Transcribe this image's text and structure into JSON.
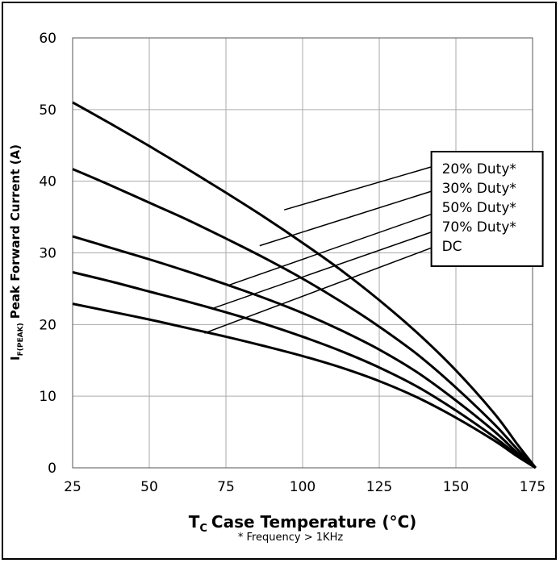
{
  "chart_data": {
    "type": "line",
    "title": "",
    "xlabel": {
      "symbol": "T",
      "subscript": "C",
      "text": "Case Temperature (°C)"
    },
    "ylabel": {
      "symbol": "I",
      "subscript": "F(PEAK)",
      "text": "Peak Forward Current (A)"
    },
    "note": "* Frequency > 1KHz",
    "xlim": [
      25,
      175
    ],
    "ylim": [
      0,
      60
    ],
    "xticks": [
      25,
      50,
      75,
      100,
      125,
      150,
      175
    ],
    "yticks": [
      0,
      10,
      20,
      30,
      40,
      50,
      60
    ],
    "grid": true,
    "legend_position": "right",
    "series": [
      {
        "name": "20% Duty*",
        "x": [
          25,
          37.5,
          50,
          62.5,
          75,
          87.5,
          100,
          112.5,
          125,
          137.5,
          150,
          162.5,
          170,
          176
        ],
        "y": [
          51.0,
          48.0,
          44.9,
          41.7,
          38.4,
          35.0,
          31.4,
          27.6,
          23.4,
          18.8,
          13.6,
          7.6,
          3.3,
          0
        ]
      },
      {
        "name": "30% Duty*",
        "x": [
          25,
          37.5,
          50,
          62.5,
          75,
          87.5,
          100,
          112.5,
          125,
          137.5,
          150,
          162.5,
          170,
          176
        ],
        "y": [
          41.7,
          39.4,
          37.0,
          34.6,
          32.0,
          29.3,
          26.4,
          23.2,
          19.7,
          15.8,
          11.2,
          6.1,
          2.6,
          0
        ]
      },
      {
        "name": "50% Duty*",
        "x": [
          25,
          37.5,
          50,
          62.5,
          75,
          87.5,
          100,
          112.5,
          125,
          137.5,
          150,
          162.5,
          170,
          176
        ],
        "y": [
          32.3,
          30.7,
          29.1,
          27.4,
          25.6,
          23.7,
          21.6,
          19.2,
          16.5,
          13.3,
          9.4,
          5.1,
          2.1,
          0
        ]
      },
      {
        "name": "70% Duty*",
        "x": [
          25,
          37.5,
          50,
          62.5,
          75,
          87.5,
          100,
          112.5,
          125,
          137.5,
          150,
          162.5,
          170,
          176
        ],
        "y": [
          27.3,
          26.0,
          24.6,
          23.2,
          21.7,
          20.1,
          18.3,
          16.3,
          14.0,
          11.3,
          8.0,
          4.3,
          1.8,
          0
        ]
      },
      {
        "name": "DC",
        "x": [
          25,
          37.5,
          50,
          62.5,
          75,
          87.5,
          100,
          112.5,
          125,
          137.5,
          150,
          162.5,
          170,
          176
        ],
        "y": [
          22.9,
          21.8,
          20.7,
          19.5,
          18.3,
          17.0,
          15.6,
          14.0,
          12.1,
          9.8,
          7.0,
          3.8,
          1.6,
          0
        ]
      }
    ],
    "annotations": [
      {
        "label": "20% Duty*",
        "from": [
          94,
          36.0
        ],
        "to": [
          142,
          42.0
        ]
      },
      {
        "label": "30% Duty*",
        "from": [
          86,
          31.0
        ],
        "to": [
          142,
          38.6
        ]
      },
      {
        "label": "50% Duty*",
        "from": [
          76,
          25.5
        ],
        "to": [
          142,
          35.4
        ]
      },
      {
        "label": "70% Duty*",
        "from": [
          71,
          22.3
        ],
        "to": [
          142,
          32.9
        ]
      },
      {
        "label": "DC",
        "from": [
          68,
          18.8
        ],
        "to": [
          142,
          30.7
        ]
      }
    ]
  }
}
